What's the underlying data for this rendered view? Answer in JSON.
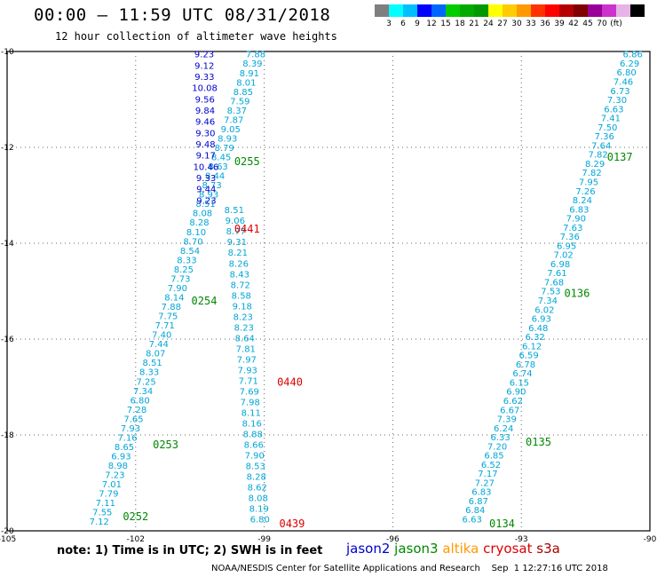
{
  "title": "00:00 – 11:59 UTC 08/31/2018",
  "subtitle": "12 hour collection of altimeter wave heights",
  "scale": {
    "colors": [
      "#7f7f7f",
      "#00ffff",
      "#00bfff",
      "#0000ff",
      "#0066ff",
      "#00cc00",
      "#00aa00",
      "#009900",
      "#ffff00",
      "#ffcc00",
      "#ff9900",
      "#ff3300",
      "#ff0000",
      "#b40000",
      "#800000",
      "#990099",
      "#cc33cc",
      "#e6b3e6",
      "#000000"
    ],
    "labels": [
      "3",
      "6",
      "9",
      "12",
      "15",
      "18",
      "21",
      "24",
      "27",
      "30",
      "33",
      "36",
      "39",
      "42",
      "45",
      "70",
      "(ft)"
    ]
  },
  "note": "note: 1) Time is in UTC; 2) SWH is in feet",
  "legend": [
    {
      "label": "jason2",
      "color": "#0000cc"
    },
    {
      "label": "jason3",
      "color": "#008800"
    },
    {
      "label": "altika",
      "color": "#ff9900"
    },
    {
      "label": "cryosat",
      "color": "#dd0000"
    },
    {
      "label": "s3a",
      "color": "#aa0000"
    }
  ],
  "credit": "NOAA/NESDIS Center for Satellite Applications and Research    Sep  1 12:27:16 UTC 2018",
  "chart_data": {
    "type": "scatter",
    "xlim": [
      -105,
      -90
    ],
    "ylim": [
      -20,
      -10
    ],
    "x_ticks": [
      "-105",
      "-102",
      "-99",
      "-96",
      "-93",
      "-90"
    ],
    "y_ticks": [
      "-10",
      "-12",
      "-14",
      "-16",
      "-18",
      "-20"
    ],
    "grid": true,
    "tracks": [
      {
        "sat": "jason3",
        "color": "#00a6d6",
        "start": [
          -99.2,
          -10.05
        ],
        "end": [
          -102.85,
          -19.8
        ],
        "values": [
          "7.88",
          "8.39",
          "8.91",
          "8.01",
          "8.85",
          "7.59",
          "8.37",
          "7.87",
          "9.05",
          "8.93",
          "8.79",
          "8.45",
          "8.63",
          "8.44",
          "8.73",
          "8.93",
          "8.51",
          "8.08",
          "8.28",
          "8.10",
          "8.70",
          "8.54",
          "8.33",
          "8.25",
          "7.73",
          "7.90",
          "8.14",
          "7.88",
          "7.75",
          "7.71",
          "7.40",
          "7.44",
          "8.07",
          "8.51",
          "8.33",
          "7.25",
          "7.34",
          "6.80",
          "7.28",
          "7.65",
          "7.93",
          "7.16",
          "8.65",
          "6.93",
          "8.98",
          "7.23",
          "7.01",
          "7.79",
          "7.11",
          "7.55",
          "7.12"
        ]
      },
      {
        "sat": "jason2",
        "color": "#0000cc",
        "start": [
          -100.4,
          -10.05
        ],
        "end": [
          -100.35,
          -13.1
        ],
        "values": [
          "9.23",
          "9.12",
          "9.33",
          "10.08",
          "9.56",
          "9.84",
          "9.46",
          "9.30",
          "9.48",
          "9.17",
          "10.46",
          "9.33",
          "9.44",
          "9.23"
        ]
      },
      {
        "sat": "jason3",
        "color": "#00a6d6",
        "start": [
          -99.7,
          -13.3
        ],
        "end": [
          -99.1,
          -19.75
        ],
        "values": [
          "8.51",
          "9.06",
          "8.77",
          "9.31",
          "8.21",
          "8.26",
          "8.43",
          "8.72",
          "8.58",
          "9.18",
          "8.23",
          "8.23",
          "8.64",
          "7.81",
          "7.97",
          "7.93",
          "7.71",
          "7.69",
          "7.98",
          "8.11",
          "8.16",
          "8.88",
          "8.66",
          "7.90",
          "8.53",
          "8.28",
          "8.62",
          "8.08",
          "8.19",
          "6.80"
        ]
      },
      {
        "sat": "jason3",
        "color": "#00a6d6",
        "start": [
          -90.4,
          -10.05
        ],
        "end": [
          -94.15,
          -19.75
        ],
        "values": [
          "6.86",
          "6.29",
          "6.80",
          "7.46",
          "6.73",
          "7.30",
          "6.63",
          "7.41",
          "7.50",
          "7.36",
          "7.64",
          "7.82",
          "8.29",
          "7.82",
          "7.95",
          "7.26",
          "8.24",
          "6.83",
          "7.90",
          "7.63",
          "7.36",
          "6.95",
          "7.02",
          "6.98",
          "7.61",
          "7.68",
          "7.53",
          "7.34",
          "6.02",
          "6.93",
          "6.48",
          "6.32",
          "6.12",
          "6.59",
          "6.78",
          "6.74",
          "6.15",
          "6.90",
          "6.62",
          "6.67",
          "7.39",
          "6.24",
          "6.33",
          "7.20",
          "6.85",
          "6.52",
          "7.17",
          "7.27",
          "6.83",
          "6.87",
          "6.84",
          "6.63"
        ]
      }
    ],
    "passes": [
      {
        "label": "0255",
        "sat": "jason3",
        "lon": -99.7,
        "lat": -12.3
      },
      {
        "label": "0441",
        "sat": "cryosat",
        "lon": -99.7,
        "lat": -13.7
      },
      {
        "label": "0254",
        "sat": "jason3",
        "lon": -100.7,
        "lat": -15.2
      },
      {
        "label": "0440",
        "sat": "cryosat",
        "lon": -98.7,
        "lat": -16.9
      },
      {
        "label": "0253",
        "sat": "jason3",
        "lon": -101.6,
        "lat": -18.2
      },
      {
        "label": "0252",
        "sat": "jason3",
        "lon": -102.3,
        "lat": -19.7
      },
      {
        "label": "0439",
        "sat": "cryosat",
        "lon": -98.65,
        "lat": -19.85
      },
      {
        "label": "0137",
        "sat": "jason3",
        "lon": -91.0,
        "lat": -12.2
      },
      {
        "label": "0136",
        "sat": "jason3",
        "lon": -92.0,
        "lat": -15.05
      },
      {
        "label": "0135",
        "sat": "jason3",
        "lon": -92.9,
        "lat": -18.15
      },
      {
        "label": "0134",
        "sat": "jason3",
        "lon": -93.75,
        "lat": -19.85
      }
    ],
    "colors": {
      "jason2": "#0000cc",
      "jason3": "#008800",
      "cryosat": "#dd0000",
      "track": "#00a6d6"
    }
  }
}
